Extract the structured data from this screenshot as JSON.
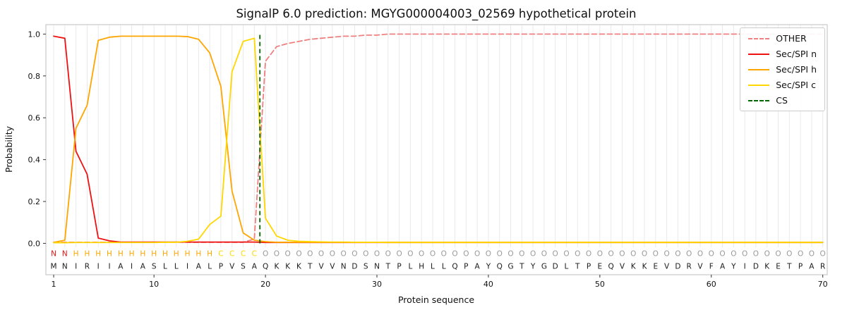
{
  "chart_data": {
    "type": "line",
    "title": "SignalP 6.0 prediction: MGYG000004003_02569 hypothetical protein",
    "xlabel": "Protein sequence",
    "ylabel": "Probability",
    "n_positions": 70,
    "xlim": [
      0.3,
      70.4
    ],
    "ylim": [
      -0.15,
      1.045
    ],
    "x_ticks": [
      1,
      10,
      20,
      30,
      40,
      50,
      60,
      70
    ],
    "y_ticks": [
      0.0,
      0.2,
      0.4,
      0.6,
      0.8,
      1.0
    ],
    "grid": "vertical line at every residue position, no horizontal grid",
    "legend_position": "upper right",
    "colors": {
      "grid": "#e9e9e9",
      "frame": "#bfbfbf",
      "tick": "#333333",
      "text": "#111111",
      "sequence_letters": "#1a1a1a"
    },
    "series": [
      {
        "name": "OTHER",
        "color": "#f08080",
        "style": "dashed",
        "values": [
          0.005,
          0.005,
          0.005,
          0.005,
          0.005,
          0.005,
          0.005,
          0.005,
          0.005,
          0.005,
          0.005,
          0.005,
          0.005,
          0.005,
          0.005,
          0.005,
          0.005,
          0.005,
          0.02,
          0.87,
          0.94,
          0.955,
          0.965,
          0.975,
          0.98,
          0.985,
          0.99,
          0.99,
          0.995,
          0.995,
          1.0,
          1.0,
          1.0,
          1.0,
          1.0,
          1.0,
          1.0,
          1.0,
          1.0,
          1.0,
          1.0,
          1.0,
          1.0,
          1.0,
          1.0,
          1.0,
          1.0,
          1.0,
          1.0,
          1.0,
          1.0,
          1.0,
          1.0,
          1.0,
          1.0,
          1.0,
          1.0,
          1.0,
          1.0,
          1.0,
          1.0,
          1.0,
          1.0,
          1.0,
          1.0,
          1.0,
          1.0,
          1.0,
          1.0,
          1.0
        ]
      },
      {
        "name": "Sec/SPI n",
        "color": "#ee1111",
        "style": "solid",
        "values": [
          0.99,
          0.98,
          0.44,
          0.33,
          0.025,
          0.012,
          0.006,
          0.006,
          0.006,
          0.006,
          0.006,
          0.006,
          0.006,
          0.006,
          0.006,
          0.006,
          0.006,
          0.006,
          0.006,
          0.004,
          0.004,
          0.004,
          0.004,
          0.004,
          0.004,
          0.004,
          0.004,
          0.004,
          0.004,
          0.004,
          0.004,
          0.004,
          0.004,
          0.004,
          0.004,
          0.004,
          0.004,
          0.004,
          0.004,
          0.004,
          0.004,
          0.004,
          0.004,
          0.004,
          0.004,
          0.004,
          0.004,
          0.004,
          0.004,
          0.004,
          0.004,
          0.004,
          0.004,
          0.004,
          0.004,
          0.004,
          0.004,
          0.004,
          0.004,
          0.004,
          0.004,
          0.004,
          0.004,
          0.004,
          0.004,
          0.004,
          0.004,
          0.004,
          0.004,
          0.004
        ]
      },
      {
        "name": "Sec/SPI h",
        "color": "#ffa500",
        "style": "solid",
        "values": [
          0.005,
          0.015,
          0.55,
          0.66,
          0.97,
          0.985,
          0.99,
          0.99,
          0.99,
          0.99,
          0.99,
          0.99,
          0.988,
          0.975,
          0.91,
          0.75,
          0.25,
          0.05,
          0.015,
          0.008,
          0.005,
          0.005,
          0.005,
          0.005,
          0.005,
          0.005,
          0.005,
          0.005,
          0.005,
          0.005,
          0.005,
          0.005,
          0.005,
          0.005,
          0.005,
          0.005,
          0.005,
          0.005,
          0.005,
          0.005,
          0.005,
          0.005,
          0.005,
          0.005,
          0.005,
          0.005,
          0.005,
          0.005,
          0.005,
          0.005,
          0.005,
          0.005,
          0.005,
          0.005,
          0.005,
          0.005,
          0.005,
          0.005,
          0.005,
          0.005,
          0.005,
          0.005,
          0.005,
          0.005,
          0.005,
          0.005,
          0.005,
          0.005,
          0.005,
          0.005
        ]
      },
      {
        "name": "Sec/SPI c",
        "color": "#ffd700",
        "style": "solid",
        "values": [
          0.003,
          0.003,
          0.004,
          0.004,
          0.004,
          0.004,
          0.004,
          0.004,
          0.004,
          0.004,
          0.005,
          0.005,
          0.01,
          0.02,
          0.09,
          0.13,
          0.82,
          0.965,
          0.98,
          0.12,
          0.035,
          0.015,
          0.01,
          0.008,
          0.007,
          0.006,
          0.006,
          0.005,
          0.005,
          0.005,
          0.004,
          0.004,
          0.004,
          0.004,
          0.004,
          0.004,
          0.004,
          0.004,
          0.004,
          0.004,
          0.004,
          0.004,
          0.004,
          0.004,
          0.004,
          0.004,
          0.004,
          0.004,
          0.004,
          0.004,
          0.004,
          0.004,
          0.004,
          0.004,
          0.004,
          0.004,
          0.004,
          0.004,
          0.004,
          0.004,
          0.004,
          0.004,
          0.004,
          0.004,
          0.004,
          0.004,
          0.004,
          0.004,
          0.004,
          0.004
        ]
      }
    ],
    "cs_line": {
      "name": "CS",
      "x": 19.5,
      "color": "#006400",
      "style": "dashed",
      "y_from": 0.0,
      "y_to": 1.0
    },
    "sequence": "MNIRIIAIASLLIALPVSAQKKKTVVNDSNTPLHLLQPAYQGTYGDLTPEQVKKEVDRVFAYIDKETPAR",
    "regions": [
      {
        "letter": "N",
        "start": 1,
        "end": 2,
        "color": "#ee1111"
      },
      {
        "letter": "H",
        "start": 3,
        "end": 15,
        "color": "#ffa500"
      },
      {
        "letter": "C",
        "start": 16,
        "end": 19,
        "color": "#ffd700"
      },
      {
        "letter": "O",
        "start": 20,
        "end": 70,
        "color": "#999999"
      }
    ]
  },
  "legend": {
    "items": [
      {
        "label": "OTHER",
        "color": "#f08080",
        "dash": true
      },
      {
        "label": "Sec/SPI n",
        "color": "#ee1111",
        "dash": false
      },
      {
        "label": "Sec/SPI h",
        "color": "#ffa500",
        "dash": false
      },
      {
        "label": "Sec/SPI c",
        "color": "#ffd700",
        "dash": false
      },
      {
        "label": "CS",
        "color": "#006400",
        "dash": true
      }
    ]
  }
}
